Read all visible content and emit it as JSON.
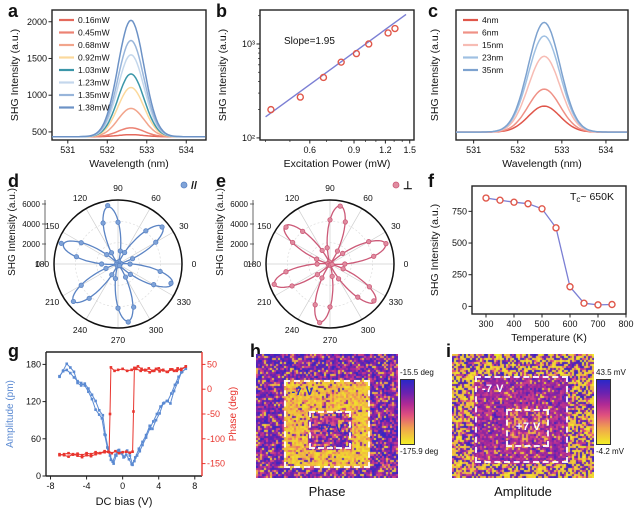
{
  "panels": {
    "a": {
      "letter": "a"
    },
    "b": {
      "letter": "b"
    },
    "c": {
      "letter": "c"
    },
    "d": {
      "letter": "d"
    },
    "e": {
      "letter": "e"
    },
    "f": {
      "letter": "f"
    },
    "g": {
      "letter": "g"
    },
    "h": {
      "letter": "h",
      "caption": "Phase",
      "colorbar_top": "-15.5 deg",
      "colorbar_bottom": "-175.9 deg",
      "label_outer": "-7 V",
      "label_inner": "+7 V"
    },
    "i": {
      "letter": "i",
      "caption": "Amplitude",
      "colorbar_top": "43.5 mV",
      "colorbar_bottom": "-4.2 mV",
      "label_outer": "-7 V",
      "label_inner": "+7 V"
    }
  },
  "chart_data": [
    {
      "panel": "a",
      "type": "line-spectra",
      "xlabel": "Wavelength (nm)",
      "ylabel": "SHG Intensity (a.u.)",
      "xlim": [
        530.6,
        534.5
      ],
      "ylim": [
        390,
        2160
      ],
      "xticks": [
        531,
        532,
        533,
        534
      ],
      "yticks": [
        500,
        1000,
        1500,
        2000
      ],
      "peak_center": 532.6,
      "peak_sigma": 0.33,
      "baseline": 435,
      "legend_position": "upper left",
      "series": [
        {
          "name": "0.16mW",
          "peak": 462,
          "color": "#e4695c"
        },
        {
          "name": "0.45mW",
          "peak": 555,
          "color": "#ec8273"
        },
        {
          "name": "0.68mW",
          "peak": 820,
          "color": "#f2a58c"
        },
        {
          "name": "0.92mW",
          "peak": 1105,
          "color": "#fbd99c"
        },
        {
          "name": "1.03mW",
          "peak": 1290,
          "color": "#3b96a8"
        },
        {
          "name": "1.23mW",
          "peak": 1550,
          "color": "#c4d7ec"
        },
        {
          "name": "1.35mW",
          "peak": 1745,
          "color": "#98b5da"
        },
        {
          "name": "1.38mW",
          "peak": 2020,
          "color": "#6c92c6"
        }
      ]
    },
    {
      "panel": "b",
      "type": "loglog-scatter",
      "xlabel": "Excitation Power (mW)",
      "ylabel": "SHG Intensity (a.u.)",
      "xscale": "log",
      "yscale": "log",
      "xlim": [
        0.38,
        1.56
      ],
      "ylim": [
        95,
        2300
      ],
      "xticks": [
        0.6,
        0.9,
        1.2,
        1.5
      ],
      "xticklabels": [
        "0.6",
        "0.9",
        "1.2",
        "1.5"
      ],
      "xminor": [
        0.4,
        0.5,
        0.7,
        0.8,
        1.0,
        1.1,
        1.3,
        1.4
      ],
      "yticks": [
        100,
        1000
      ],
      "yticklabels": [
        "10²",
        "10³"
      ],
      "yminor": [
        200,
        300,
        400,
        500,
        600,
        700,
        800,
        900,
        2000
      ],
      "annotation": "Slope=1.95",
      "fit_slope": 1.95,
      "fit_coeff": 1000,
      "x": [
        0.42,
        0.55,
        0.68,
        0.8,
        0.92,
        1.03,
        1.23,
        1.31
      ],
      "y": [
        200,
        272,
        440,
        640,
        790,
        1000,
        1310,
        1460
      ],
      "marker_color": "#e0574a",
      "line_color": "#7b7fd4"
    },
    {
      "panel": "c",
      "type": "line-spectra",
      "xlabel": "Wavelength (nm)",
      "ylabel": "SHG Intensity (a.u.)",
      "xlim": [
        530.6,
        534.5
      ],
      "ylim": [
        0,
        1.15
      ],
      "xticks": [
        531,
        532,
        533,
        534
      ],
      "yticks": [],
      "peak_center": 532.6,
      "peak_sigma": 0.36,
      "baseline": 0.07,
      "legend_position": "upper left",
      "series": [
        {
          "name": "4nm",
          "peak": 0.3,
          "color": "#e0564a"
        },
        {
          "name": "6nm",
          "peak": 0.45,
          "color": "#ef9186"
        },
        {
          "name": "15nm",
          "peak": 0.74,
          "color": "#f7bcb4"
        },
        {
          "name": "23nm",
          "peak": 0.92,
          "color": "#9fc0e2"
        },
        {
          "name": "35nm",
          "peak": 1.04,
          "color": "#7da2cf"
        }
      ]
    },
    {
      "panel": "d",
      "type": "polar",
      "ylabel": "SHG Intensity (a.u.)",
      "legend": "//",
      "amplitude": 5800,
      "rmax": 6400,
      "lobes": 6,
      "offset_deg": 40,
      "rticks": [
        0,
        2000,
        4000,
        6000
      ],
      "angle_labels": [
        "0",
        "30",
        "60",
        "90",
        "120",
        "150",
        "180",
        "210",
        "240",
        "270",
        "300",
        "330"
      ],
      "color": "#5b84c4",
      "marker_fill": "#7fa3d8",
      "seed": 7
    },
    {
      "panel": "e",
      "type": "polar",
      "ylabel": "SHG Intensity (a.u.)",
      "legend": "⊥",
      "amplitude": 5900,
      "rmax": 6400,
      "lobes": 6,
      "offset_deg": 20,
      "rticks": [
        0,
        2000,
        4000,
        6000
      ],
      "angle_labels": [
        "0",
        "30",
        "60",
        "90",
        "120",
        "150",
        "180",
        "210",
        "240",
        "270",
        "300",
        "330"
      ],
      "color": "#cc5a78",
      "marker_fill": "#e08ca0",
      "seed": 11
    },
    {
      "panel": "f",
      "type": "scatter-line",
      "xlabel": "Temperature (K)",
      "ylabel": "SHG Intensity (a.u.)",
      "xlim": [
        250,
        800
      ],
      "ylim": [
        -60,
        950
      ],
      "xticks": [
        300,
        400,
        500,
        600,
        700,
        800
      ],
      "yticks": [
        0,
        250,
        500,
        750
      ],
      "annotation_parts": {
        "pre": "T",
        "sub": "c",
        "post": "~ 650K"
      },
      "x": [
        300,
        350,
        400,
        450,
        500,
        550,
        600,
        650,
        700,
        750
      ],
      "y": [
        855,
        838,
        822,
        810,
        770,
        620,
        155,
        25,
        12,
        15
      ],
      "marker_color": "#e0574a",
      "line_color": "#7b7fd4"
    },
    {
      "panel": "g",
      "type": "dual-hysteresis",
      "xlabel": "DC bias (V)",
      "ylabel_left": "Amplitude (pm)",
      "ylabel_right": "Phase (deg)",
      "xlim": [
        -8.5,
        8.8
      ],
      "xticks": [
        -8,
        -4,
        0,
        4,
        8
      ],
      "ylim_left": [
        0,
        200
      ],
      "yticks_left": [
        0,
        60,
        120,
        180
      ],
      "ylim_right": [
        -175,
        75
      ],
      "yticks_right": [
        50,
        0,
        -50,
        -100,
        -150
      ],
      "amplitude_color": "#5b8ad2",
      "phase_color": "#e8352e",
      "amplitude_branches": [
        [
          [
            -7,
            160
          ],
          [
            -6.6,
            170
          ],
          [
            -6.2,
            181
          ],
          [
            -5.8,
            175
          ],
          [
            -5.4,
            168
          ],
          [
            -5,
            150
          ],
          [
            -4.6,
            146
          ],
          [
            -4.2,
            149
          ],
          [
            -3.8,
            141
          ],
          [
            -3.4,
            131
          ],
          [
            -3,
            121
          ],
          [
            -2.6,
            106
          ],
          [
            -2.2,
            98
          ],
          [
            -1.9,
            66
          ],
          [
            -1.6,
            44
          ],
          [
            -1.3,
            26
          ],
          [
            -1,
            20
          ],
          [
            -0.7,
            33
          ],
          [
            -0.4,
            42
          ],
          [
            -0.1,
            37
          ],
          [
            0.2,
            31
          ],
          [
            0.5,
            41
          ],
          [
            0.8,
            33
          ],
          [
            1.1,
            18
          ],
          [
            1.4,
            30
          ],
          [
            1.8,
            44
          ],
          [
            2.2,
            55
          ],
          [
            2.6,
            66
          ],
          [
            3,
            81
          ],
          [
            3.3,
            76
          ],
          [
            3.7,
            90
          ],
          [
            4.1,
            101
          ],
          [
            4.5,
            117
          ],
          [
            4.9,
            121
          ],
          [
            5.3,
            117
          ],
          [
            5.7,
            137
          ],
          [
            6.1,
            151
          ],
          [
            6.5,
            167
          ],
          [
            7,
            173
          ]
        ],
        [
          [
            7,
            173
          ],
          [
            6.6,
            168
          ],
          [
            6.2,
            160
          ],
          [
            5.8,
            147
          ],
          [
            5.4,
            133
          ],
          [
            5,
            121
          ],
          [
            4.6,
            118
          ],
          [
            4.2,
            112
          ],
          [
            3.8,
            100
          ],
          [
            3.4,
            88
          ],
          [
            3,
            76
          ],
          [
            2.6,
            62
          ],
          [
            2.2,
            50
          ],
          [
            1.9,
            40
          ],
          [
            1.6,
            33
          ],
          [
            1.3,
            24
          ],
          [
            1,
            19
          ],
          [
            0.7,
            27
          ],
          [
            0.4,
            34
          ],
          [
            0.1,
            30
          ],
          [
            -0.2,
            37
          ],
          [
            -0.5,
            41
          ],
          [
            -0.8,
            34
          ],
          [
            -1.1,
            23
          ],
          [
            -1.4,
            33
          ],
          [
            -1.7,
            46
          ],
          [
            -2,
            67
          ],
          [
            -2.3,
            93
          ],
          [
            -2.6,
            99
          ],
          [
            -3,
            107
          ],
          [
            -3.4,
            124
          ],
          [
            -3.8,
            136
          ],
          [
            -4.2,
            146
          ],
          [
            -4.6,
            150
          ],
          [
            -5,
            153
          ],
          [
            -5.4,
            159
          ],
          [
            -5.8,
            166
          ],
          [
            -6.2,
            171
          ],
          [
            -6.6,
            169
          ],
          [
            -7,
            161
          ]
        ]
      ],
      "phase_branches": [
        [
          [
            -7,
            -131
          ],
          [
            -6.5,
            -133
          ],
          [
            -6,
            -136
          ],
          [
            -5.5,
            -131
          ],
          [
            -5,
            -134
          ],
          [
            -4.5,
            -137
          ],
          [
            -4,
            -133
          ],
          [
            -3.5,
            -135
          ],
          [
            -3,
            -131
          ],
          [
            -2.5,
            -129
          ],
          [
            -2,
            -127
          ],
          [
            -1.6,
            -126
          ],
          [
            -1.2,
            -129
          ],
          [
            -0.8,
            -125
          ],
          [
            -0.4,
            -129
          ],
          [
            0,
            -127
          ],
          [
            0.4,
            -126
          ],
          [
            0.8,
            -128
          ],
          [
            1.1,
            -126
          ],
          [
            1.2,
            -45
          ],
          [
            1.3,
            43
          ],
          [
            1.7,
            46
          ],
          [
            2.1,
            41
          ],
          [
            2.5,
            38
          ],
          [
            2.9,
            42
          ],
          [
            3.3,
            37
          ],
          [
            3.7,
            41
          ],
          [
            4.1,
            36
          ],
          [
            4.5,
            39
          ],
          [
            4.9,
            35
          ],
          [
            5.3,
            40
          ],
          [
            5.7,
            37
          ],
          [
            6.1,
            42
          ],
          [
            6.5,
            39
          ],
          [
            7,
            46
          ]
        ],
        [
          [
            7,
            46
          ],
          [
            6.5,
            41
          ],
          [
            6,
            37
          ],
          [
            5.5,
            40
          ],
          [
            5,
            35
          ],
          [
            4.5,
            38
          ],
          [
            4,
            42
          ],
          [
            3.5,
            37
          ],
          [
            3,
            34
          ],
          [
            2.5,
            39
          ],
          [
            2,
            37
          ],
          [
            1.5,
            41
          ],
          [
            1,
            39
          ],
          [
            0.5,
            37
          ],
          [
            0,
            41
          ],
          [
            -0.5,
            39
          ],
          [
            -0.9,
            37
          ],
          [
            -1.3,
            44
          ],
          [
            -1.4,
            -50
          ],
          [
            -1.5,
            -127
          ],
          [
            -2,
            -125
          ],
          [
            -2.5,
            -129
          ],
          [
            -3,
            -127
          ],
          [
            -3.5,
            -131
          ],
          [
            -4,
            -129
          ],
          [
            -4.5,
            -133
          ],
          [
            -5,
            -130
          ],
          [
            -5.5,
            -132
          ],
          [
            -6,
            -129
          ],
          [
            -6.5,
            -131
          ],
          [
            -7,
            -133
          ]
        ]
      ]
    },
    {
      "panel": "h",
      "type": "pfm-image",
      "title": "Phase",
      "colorbar": {
        "top_label": "-15.5 deg",
        "bottom_label": "-175.9 deg"
      },
      "seed": 12345,
      "outer": {
        "x": 0.2,
        "y": 0.21,
        "w": 0.6,
        "h": 0.71
      },
      "inner": {
        "x": 0.37,
        "y": 0.46,
        "w": 0.3,
        "h": 0.31
      },
      "bands": {
        "bg": [
          {
            "w": 0.15,
            "lo": 0.05,
            "hi": 0.3
          },
          {
            "w": 0.3,
            "lo": 0.45,
            "hi": 0.7
          },
          {
            "w": 0.55,
            "lo": 0.7,
            "hi": 1.0
          }
        ],
        "outer": [
          {
            "w": 0.7,
            "lo": 0.03,
            "hi": 0.2
          },
          {
            "w": 0.2,
            "lo": 0.2,
            "hi": 0.4
          },
          {
            "w": 0.1,
            "lo": 0.55,
            "hi": 0.9
          }
        ],
        "inner": [
          {
            "w": 0.5,
            "lo": 0.6,
            "hi": 1.0
          },
          {
            "w": 0.3,
            "lo": 0.4,
            "hi": 0.6
          },
          {
            "w": 0.2,
            "lo": 0.05,
            "hi": 0.3
          }
        ]
      },
      "label_color": "#2633c8"
    },
    {
      "panel": "i",
      "type": "pfm-image",
      "title": "Amplitude",
      "colorbar": {
        "top_label": "43.5 mV",
        "bottom_label": "-4.2 mV"
      },
      "seed": 98765,
      "outer": {
        "x": 0.16,
        "y": 0.18,
        "w": 0.66,
        "h": 0.7
      },
      "inner": {
        "x": 0.38,
        "y": 0.44,
        "w": 0.3,
        "h": 0.31
      },
      "bands": {
        "bg": [
          {
            "w": 0.5,
            "lo": 0.0,
            "hi": 0.22
          },
          {
            "w": 0.35,
            "lo": 0.72,
            "hi": 1.0
          },
          {
            "w": 0.15,
            "lo": 0.4,
            "hi": 0.6
          }
        ],
        "outer": [
          {
            "w": 0.65,
            "lo": 0.5,
            "hi": 0.75
          },
          {
            "w": 0.25,
            "lo": 0.65,
            "hi": 0.95
          },
          {
            "w": 0.1,
            "lo": 0.05,
            "hi": 0.25
          }
        ],
        "inner": [
          {
            "w": 0.45,
            "lo": 0.45,
            "hi": 0.7
          },
          {
            "w": 0.3,
            "lo": 0.12,
            "hi": 0.3
          },
          {
            "w": 0.25,
            "lo": 0.65,
            "hi": 0.9
          }
        ]
      },
      "label_color": "#ffffff"
    }
  ]
}
